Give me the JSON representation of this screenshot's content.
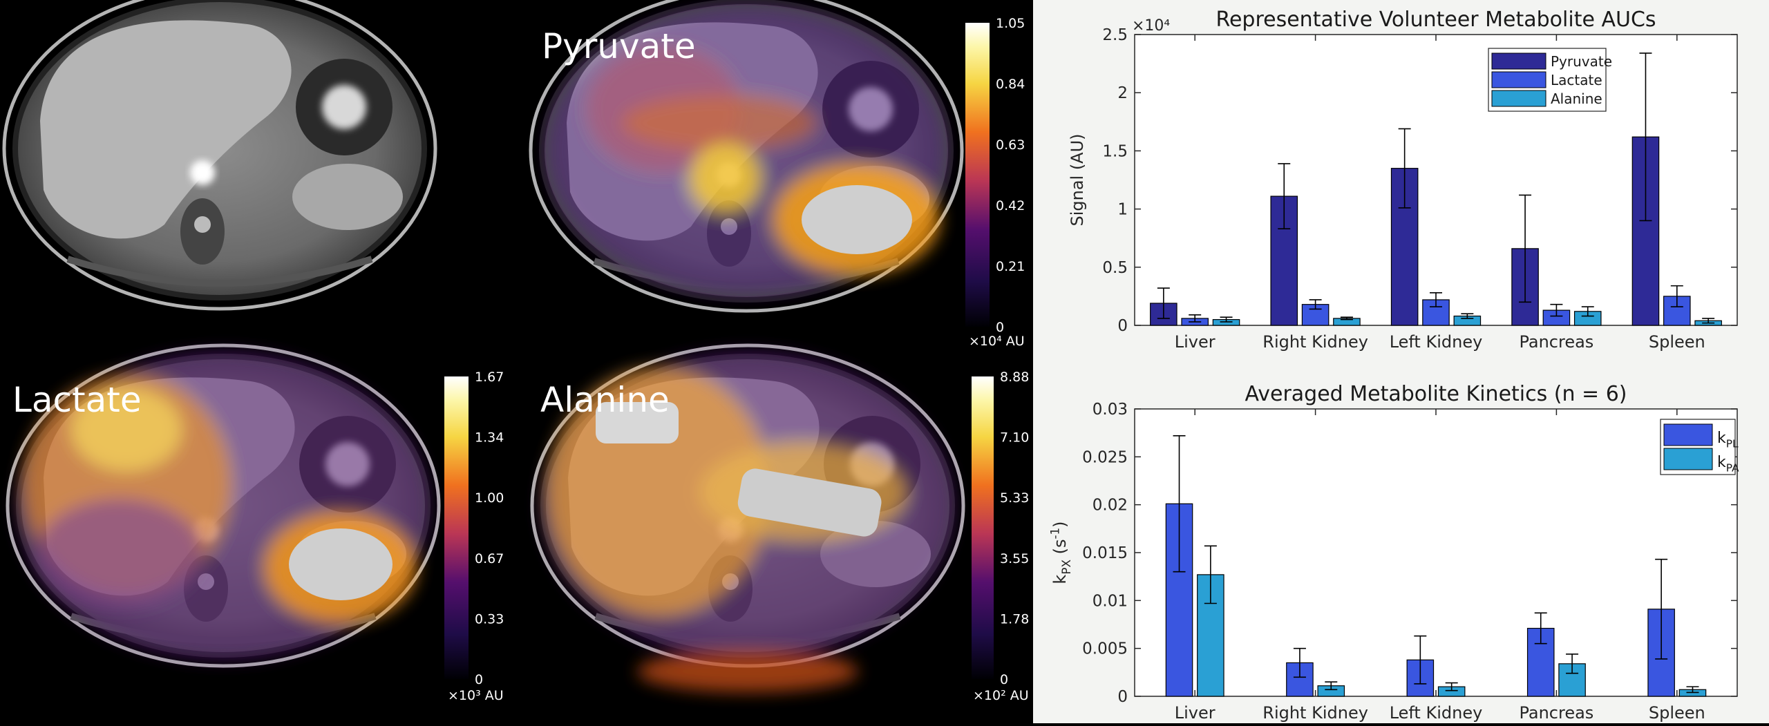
{
  "panels": [
    {
      "id": "anatomy",
      "label": ""
    },
    {
      "id": "pyruvate",
      "label": "Pyruvate",
      "colorbar": {
        "ticks": [
          "1.05",
          "0.84",
          "0.63",
          "0.42",
          "0.21",
          "0"
        ],
        "unit": "×10⁴ AU"
      }
    },
    {
      "id": "lactate",
      "label": "Lactate",
      "colorbar": {
        "ticks": [
          "1.67",
          "1.34",
          "1.00",
          "0.67",
          "0.33",
          "0"
        ],
        "unit": "×10³ AU"
      }
    },
    {
      "id": "alanine",
      "label": "Alanine",
      "colorbar": {
        "ticks": [
          "8.88",
          "7.10",
          "5.33",
          "3.55",
          "1.78",
          "0"
        ],
        "unit": "×10² AU"
      }
    }
  ],
  "colors": {
    "pyruvate": "#2e2a96",
    "lactate": "#3a56e0",
    "alanine": "#2aa0d4",
    "error_bar": "#000000"
  },
  "chart_data": [
    {
      "type": "bar",
      "title": "Representative Volunteer Metabolite AUCs",
      "ylabel": "Signal (AU)",
      "exponent_label": "×10⁴",
      "categories": [
        "Liver",
        "Right Kidney",
        "Left Kidney",
        "Pancreas",
        "Spleen"
      ],
      "ylim": [
        0,
        2.5
      ],
      "yticks": [
        "0",
        "0.5",
        "1",
        "1.5",
        "2",
        "2.5"
      ],
      "legend_position": "top-right",
      "series": [
        {
          "name": "Pyruvate",
          "values": [
            0.19,
            1.11,
            1.35,
            0.66,
            1.62
          ],
          "errors": [
            0.13,
            0.28,
            0.34,
            0.46,
            0.72
          ]
        },
        {
          "name": "Lactate",
          "values": [
            0.06,
            0.18,
            0.22,
            0.13,
            0.25
          ],
          "errors": [
            0.03,
            0.04,
            0.06,
            0.05,
            0.09
          ]
        },
        {
          "name": "Alanine",
          "values": [
            0.05,
            0.06,
            0.08,
            0.12,
            0.04
          ],
          "errors": [
            0.02,
            0.01,
            0.02,
            0.04,
            0.02
          ]
        }
      ]
    },
    {
      "type": "bar",
      "title": "Averaged Metabolite Kinetics (n = 6)",
      "ylabel": "k_PX (s^-1)",
      "categories": [
        "Liver",
        "Right Kidney",
        "Left Kidney",
        "Pancreas",
        "Spleen"
      ],
      "ylim": [
        0,
        0.03
      ],
      "yticks": [
        "0",
        "0.005",
        "0.01",
        "0.015",
        "0.02",
        "0.025",
        "0.03"
      ],
      "legend_position": "top-right",
      "series": [
        {
          "name": "k_PL",
          "values": [
            0.0201,
            0.0035,
            0.0038,
            0.0071,
            0.0091
          ],
          "errors": [
            0.0071,
            0.0015,
            0.0025,
            0.0016,
            0.0052
          ]
        },
        {
          "name": "k_PA",
          "values": [
            0.0127,
            0.0011,
            0.001,
            0.0034,
            0.0007
          ],
          "errors": [
            0.003,
            0.0004,
            0.0004,
            0.001,
            0.0003
          ]
        }
      ]
    }
  ]
}
